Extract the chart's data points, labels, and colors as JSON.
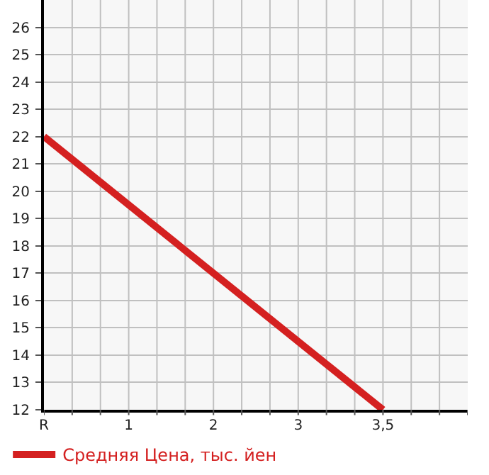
{
  "chart_data": {
    "type": "line",
    "categories": [
      "R",
      null,
      null,
      "1",
      null,
      null,
      "2",
      null,
      null,
      "3",
      null,
      null,
      "3,5",
      null,
      null,
      null
    ],
    "series": [
      {
        "name": "Средняя Цена, тыс. йен",
        "color": "#d42020",
        "values": [
          22,
          null,
          null,
          null,
          null,
          null,
          null,
          null,
          null,
          null,
          null,
          null,
          12,
          null,
          null,
          null
        ]
      }
    ],
    "ylim": [
      12,
      27
    ],
    "yticks": [
      12,
      13,
      14,
      15,
      16,
      17,
      18,
      19,
      20,
      21,
      22,
      23,
      24,
      25,
      26
    ],
    "grid": true,
    "legend": "bottom left",
    "marker": "none",
    "line_style": "solid"
  }
}
